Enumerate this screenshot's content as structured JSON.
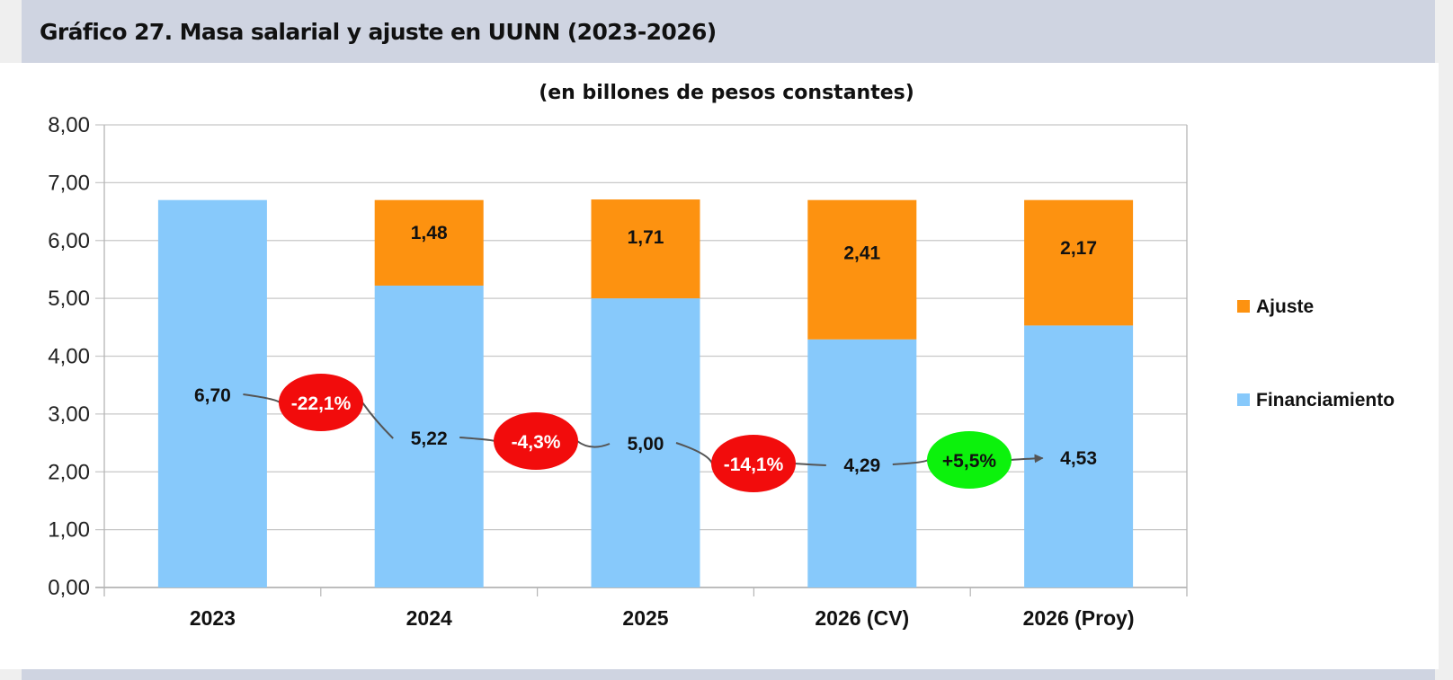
{
  "header": {
    "title": "Gráfico 27. Masa salarial y ajuste en UUNN (2023-2026)"
  },
  "chart_data": {
    "type": "bar",
    "stacked": true,
    "title": "Gráfico 27. Masa salarial y ajuste en UUNN (2023-2026)",
    "subtitle": "(en billones de pesos constantes)",
    "xlabel": "",
    "ylabel": "",
    "ylim": [
      0,
      8
    ],
    "yticks": [
      "0,00",
      "1,00",
      "2,00",
      "3,00",
      "4,00",
      "5,00",
      "6,00",
      "7,00",
      "8,00"
    ],
    "grid": true,
    "legend_position": "right",
    "categories": [
      "2023",
      "2024",
      "2025",
      "2026 (CV)",
      "2026 (Proy)"
    ],
    "series": [
      {
        "name": "Financiamiento",
        "color": "#87c9fb",
        "values": [
          6.7,
          5.22,
          5.0,
          4.29,
          4.53
        ],
        "labels": [
          "6,70",
          "5,22",
          "5,00",
          "4,29",
          "4,53"
        ]
      },
      {
        "name": "Ajuste",
        "color": "#fd9210",
        "values": [
          0,
          1.48,
          1.71,
          2.41,
          2.17
        ],
        "labels": [
          "",
          "1,48",
          "1,71",
          "2,41",
          "2,17"
        ]
      }
    ],
    "legend": [
      "Ajuste",
      "Financiamiento"
    ],
    "annotations": [
      {
        "text": "-22,1%",
        "between": [
          "2023",
          "2024"
        ],
        "color": "#f20c0c",
        "text_color": "#ffffff"
      },
      {
        "text": "-4,3%",
        "between": [
          "2024",
          "2025"
        ],
        "color": "#f20c0c",
        "text_color": "#ffffff"
      },
      {
        "text": "-14,1%",
        "between": [
          "2025",
          "2026 (CV)"
        ],
        "color": "#f20c0c",
        "text_color": "#ffffff"
      },
      {
        "text": "+5,5%",
        "between": [
          "2026 (CV)",
          "2026 (Proy)"
        ],
        "color": "#0cf20c",
        "text_color": "#111111"
      }
    ]
  }
}
